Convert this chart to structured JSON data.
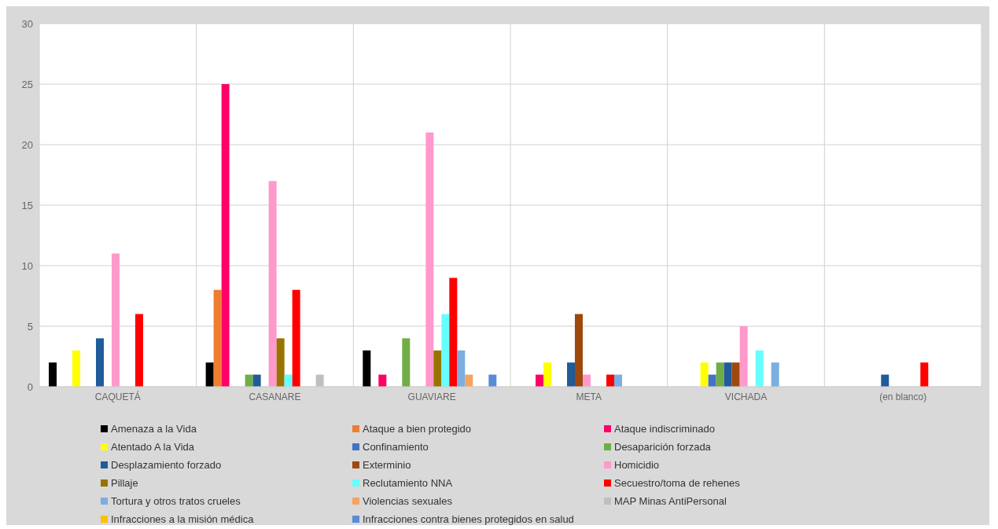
{
  "chart_data": {
    "type": "bar",
    "categories": [
      "CAQUETÁ",
      "CASANARE",
      "GUAVIARE",
      "META",
      "VICHADA",
      "(en blanco)"
    ],
    "series": [
      {
        "name": "Amenaza a la Vida",
        "color": "#000000",
        "values": [
          2,
          2,
          3,
          null,
          null,
          null
        ]
      },
      {
        "name": "Ataque a bien protegido",
        "color": "#ed7d31",
        "values": [
          null,
          8,
          null,
          null,
          null,
          null
        ]
      },
      {
        "name": "Ataque indiscriminado",
        "color": "#ff0066",
        "values": [
          null,
          25,
          1,
          1,
          null,
          null
        ]
      },
      {
        "name": "Atentado A la Vida",
        "color": "#ffff00",
        "values": [
          3,
          null,
          null,
          2,
          2,
          null
        ]
      },
      {
        "name": "Confinamiento",
        "color": "#4472c4",
        "values": [
          null,
          null,
          null,
          null,
          1,
          null
        ]
      },
      {
        "name": "Desaparición forzada",
        "color": "#70ad47",
        "values": [
          null,
          1,
          4,
          null,
          2,
          null
        ]
      },
      {
        "name": "Desplazamiento forzado",
        "color": "#1f5c99",
        "values": [
          4,
          1,
          null,
          2,
          2,
          1
        ]
      },
      {
        "name": "Exterminio",
        "color": "#9e480e",
        "values": [
          null,
          null,
          null,
          6,
          2,
          null
        ]
      },
      {
        "name": "Homicidio",
        "color": "#ff99cc",
        "values": [
          11,
          17,
          21,
          1,
          5,
          null
        ]
      },
      {
        "name": "Pillaje",
        "color": "#997300",
        "values": [
          null,
          4,
          3,
          null,
          null,
          null
        ]
      },
      {
        "name": "Reclutamiento NNA",
        "color": "#66ffff",
        "values": [
          null,
          1,
          6,
          null,
          3,
          null
        ]
      },
      {
        "name": "Secuestro/toma de rehenes",
        "color": "#ff0000",
        "values": [
          6,
          8,
          9,
          1,
          null,
          2
        ]
      },
      {
        "name": "Tortura y otros tratos crueles",
        "color": "#7caee0",
        "values": [
          null,
          null,
          3,
          1,
          2,
          null
        ]
      },
      {
        "name": "Violencias sexuales",
        "color": "#f4a460",
        "values": [
          null,
          null,
          1,
          null,
          null,
          null
        ]
      },
      {
        "name": "MAP Minas AntiPersonal",
        "color": "#bfbfbf",
        "values": [
          null,
          1,
          null,
          null,
          null,
          null
        ]
      },
      {
        "name": "Infracciones a la misión médica",
        "color": "#ffc000",
        "values": [
          null,
          null,
          null,
          null,
          null,
          null
        ]
      },
      {
        "name": "Infracciones contra bienes protegidos en salud",
        "color": "#5b8bd4",
        "values": [
          null,
          null,
          1,
          null,
          null,
          null
        ]
      }
    ],
    "ylim": [
      0,
      30
    ],
    "yticks": [
      0,
      5,
      10,
      15,
      20,
      25,
      30
    ],
    "grid": true,
    "legend": "bottom"
  }
}
